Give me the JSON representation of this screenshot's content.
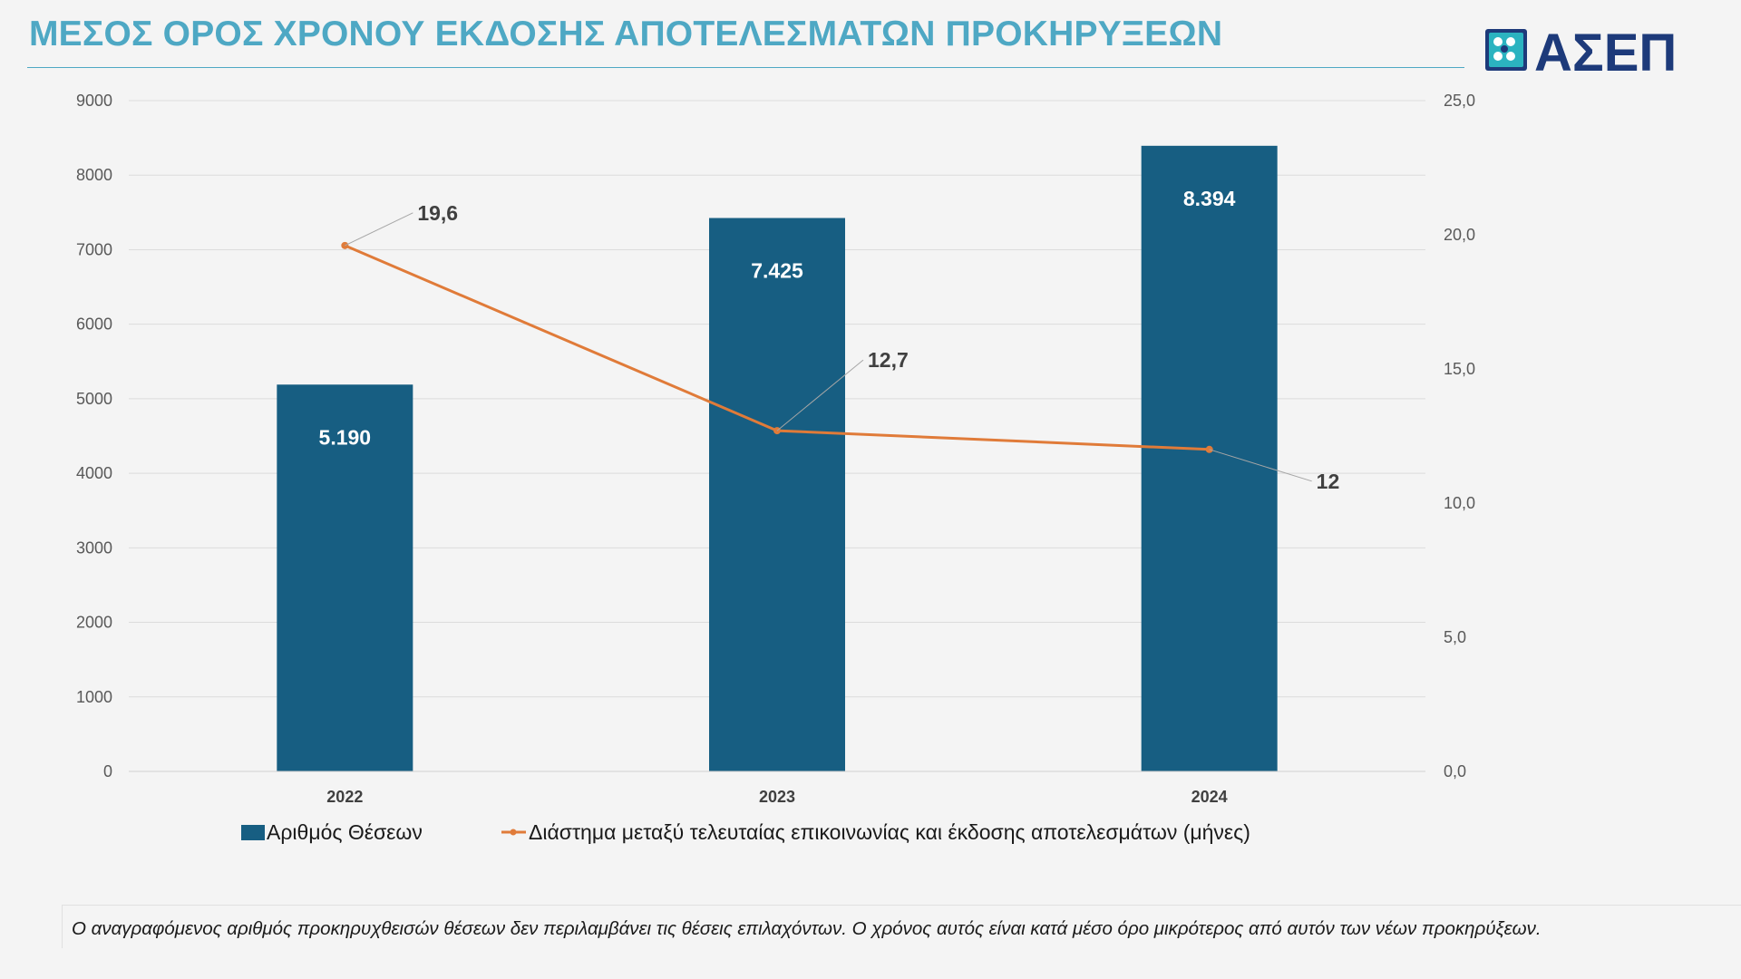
{
  "title": "ΜΕΣΟΣ ΟΡΟΣ ΧΡΟΝΟΥ ΕΚΔΟΣΗΣ ΑΠΟΤΕΛΕΣΜΑΤΩΝ ΠΡΟΚΗΡΥΞΕΩΝ",
  "logo": {
    "text": "ΑΣΕΠ",
    "color_dark": "#1d3a7a",
    "color_light": "#2bb3c0"
  },
  "chart_data": {
    "type": "bar",
    "categories": [
      "2022",
      "2023",
      "2024"
    ],
    "series": [
      {
        "name": "Αριθμός Θέσεων",
        "type": "bar",
        "axis": "left",
        "values": [
          5190,
          7425,
          8394
        ],
        "labels": [
          "5.190",
          "7.425",
          "8.394"
        ],
        "color": "#175e82"
      },
      {
        "name": "Διάστημα μεταξύ τελευταίας επικοινωνίας και έκδοσης αποτελεσμάτων (μήνες)",
        "type": "line",
        "axis": "right",
        "values": [
          19.6,
          12.7,
          12
        ],
        "labels": [
          "19,6",
          "12,7",
          "12"
        ],
        "color": "#e07b39"
      }
    ],
    "y_left": {
      "range": [
        0,
        9000
      ],
      "ticks": [
        "0",
        "1000",
        "2000",
        "3000",
        "4000",
        "5000",
        "6000",
        "7000",
        "8000",
        "9000"
      ]
    },
    "y_right": {
      "range": [
        0,
        25
      ],
      "ticks": [
        "0,0",
        "5,0",
        "10,0",
        "15,0",
        "20,0",
        "25,0"
      ]
    },
    "grid": true,
    "legend": "bottom"
  },
  "note": "Ο αναγραφόμενος αριθμός προκηρυχθεισών θέσεων δεν περιλαμβάνει τις θέσεις επιλαχόντων. Ο χρόνος αυτός είναι κατά μέσο όρο μικρότερος από αυτόν των νέων προκηρύξεων."
}
